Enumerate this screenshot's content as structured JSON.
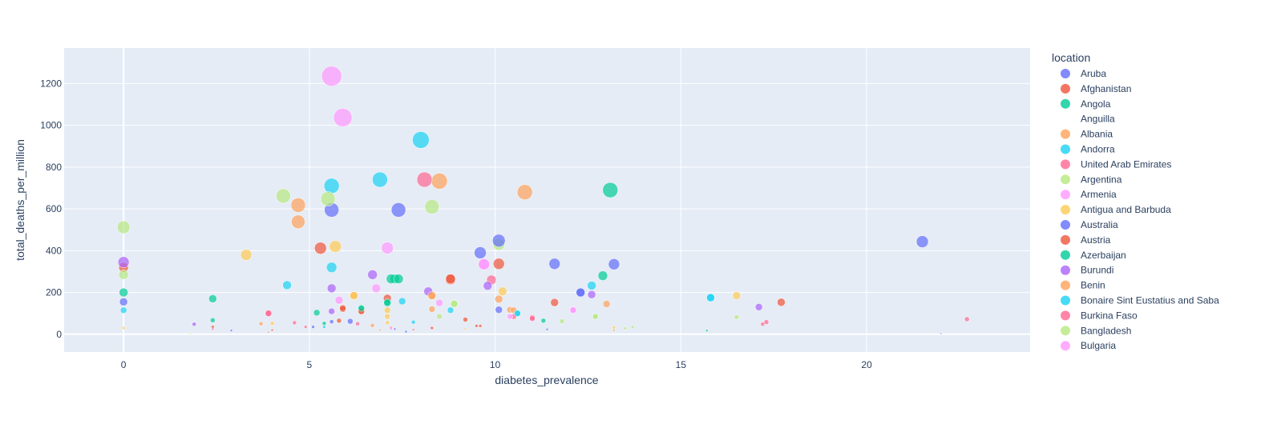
{
  "chart_data": {
    "type": "scatter",
    "xlabel": "diabetes_prevalence",
    "ylabel": "total_deaths_per_million",
    "xlim": [
      -1.6,
      24.4
    ],
    "ylim": [
      -85,
      1370
    ],
    "x_ticks": [
      0,
      5,
      10,
      15,
      20
    ],
    "y_ticks": [
      0,
      200,
      400,
      600,
      800,
      1000,
      1200
    ],
    "grid": true,
    "legend_title": "location",
    "legend_position": "right",
    "series": [
      {
        "name": "Aruba",
        "color": "#636efa",
        "points": [
          {
            "x": 0,
            "y": 155,
            "s": 10
          },
          {
            "x": 5.6,
            "y": 595,
            "s": 18
          },
          {
            "x": 9.6,
            "y": 390,
            "s": 15
          },
          {
            "x": 11.6,
            "y": 337,
            "s": 14
          },
          {
            "x": 13.2,
            "y": 335,
            "s": 14
          },
          {
            "x": 21.5,
            "y": 443,
            "s": 15
          },
          {
            "x": 12.3,
            "y": 200,
            "s": 11
          },
          {
            "x": 10.1,
            "y": 117,
            "s": 9
          },
          {
            "x": 6.1,
            "y": 62,
            "s": 7
          },
          {
            "x": 2.9,
            "y": 18,
            "s": 3
          },
          {
            "x": 5.1,
            "y": 35,
            "s": 4
          },
          {
            "x": 7.3,
            "y": 25,
            "s": 3
          },
          {
            "x": 22,
            "y": 3,
            "s": 2
          },
          {
            "x": 11.4,
            "y": 23,
            "s": 3
          }
        ]
      },
      {
        "name": "Afghanistan",
        "color": "#ef553b",
        "points": [
          {
            "x": 0,
            "y": 320,
            "s": 12
          },
          {
            "x": 5.3,
            "y": 412,
            "s": 15
          },
          {
            "x": 8.8,
            "y": 262,
            "s": 13
          },
          {
            "x": 10.1,
            "y": 337,
            "s": 14
          },
          {
            "x": 11.6,
            "y": 152,
            "s": 10
          },
          {
            "x": 17.7,
            "y": 153,
            "s": 10
          },
          {
            "x": 7.1,
            "y": 172,
            "s": 10
          },
          {
            "x": 5.9,
            "y": 120,
            "s": 8
          },
          {
            "x": 6.4,
            "y": 110,
            "s": 8
          },
          {
            "x": 8.3,
            "y": 30,
            "s": 4
          },
          {
            "x": 4,
            "y": 20,
            "s": 3
          },
          {
            "x": 2.4,
            "y": 35,
            "s": 4
          },
          {
            "x": 9.5,
            "y": 40,
            "s": 4
          },
          {
            "x": 5.8,
            "y": 65,
            "s": 6
          },
          {
            "x": 9.2,
            "y": 70,
            "s": 6
          }
        ]
      },
      {
        "name": "Angola",
        "color": "#00cc96",
        "points": [
          {
            "x": 0,
            "y": 200,
            "s": 11
          },
          {
            "x": 7.3,
            "y": 265,
            "s": 12
          },
          {
            "x": 7.2,
            "y": 265,
            "s": 12
          },
          {
            "x": 13.1,
            "y": 690,
            "s": 19
          },
          {
            "x": 12.9,
            "y": 280,
            "s": 12
          },
          {
            "x": 2.4,
            "y": 170,
            "s": 10
          },
          {
            "x": 7.1,
            "y": 148,
            "s": 9
          },
          {
            "x": 6.4,
            "y": 120,
            "s": 8
          },
          {
            "x": 5.2,
            "y": 103,
            "s": 8
          },
          {
            "x": 2.4,
            "y": 67,
            "s": 6
          },
          {
            "x": 5.4,
            "y": 52,
            "s": 5
          },
          {
            "x": 11.3,
            "y": 65,
            "s": 6
          },
          {
            "x": 15.7,
            "y": 18,
            "s": 3
          }
        ]
      },
      {
        "name": "Anguilla",
        "color": "#ab63fa",
        "points": []
      },
      {
        "name": "Albania",
        "color": "#ffa15a",
        "points": [
          {
            "x": 4.7,
            "y": 618,
            "s": 18
          },
          {
            "x": 4.7,
            "y": 538,
            "s": 17
          },
          {
            "x": 8.5,
            "y": 733,
            "s": 20
          },
          {
            "x": 10.8,
            "y": 680,
            "s": 19
          },
          {
            "x": 6.2,
            "y": 185,
            "s": 10
          },
          {
            "x": 8.3,
            "y": 183,
            "s": 10
          },
          {
            "x": 10.1,
            "y": 168,
            "s": 10
          },
          {
            "x": 13,
            "y": 145,
            "s": 9
          },
          {
            "x": 8.3,
            "y": 120,
            "s": 8
          },
          {
            "x": 10.4,
            "y": 117,
            "s": 8
          },
          {
            "x": 3.7,
            "y": 50,
            "s": 5
          },
          {
            "x": 6.7,
            "y": 42,
            "s": 5
          },
          {
            "x": 6.9,
            "y": 20,
            "s": 3
          },
          {
            "x": 13.2,
            "y": 20,
            "s": 3
          }
        ]
      },
      {
        "name": "Andorra",
        "color": "#19d3f3",
        "points": [
          {
            "x": 5.6,
            "y": 710,
            "s": 19
          },
          {
            "x": 6.9,
            "y": 740,
            "s": 19
          },
          {
            "x": 8,
            "y": 930,
            "s": 21
          },
          {
            "x": 5.6,
            "y": 320,
            "s": 13
          },
          {
            "x": 4.4,
            "y": 235,
            "s": 11
          },
          {
            "x": 12.6,
            "y": 233,
            "s": 11
          },
          {
            "x": 15.8,
            "y": 175,
            "s": 10
          },
          {
            "x": 7.5,
            "y": 158,
            "s": 9
          },
          {
            "x": 8.8,
            "y": 115,
            "s": 8
          },
          {
            "x": 10.6,
            "y": 100,
            "s": 8
          },
          {
            "x": 0,
            "y": 115,
            "s": 8
          },
          {
            "x": 7.8,
            "y": 58,
            "s": 5
          },
          {
            "x": 5.4,
            "y": 35,
            "s": 4
          },
          {
            "x": 7.6,
            "y": 15,
            "s": 3
          }
        ]
      },
      {
        "name": "United Arab Emirates",
        "color": "#ff6692",
        "points": [
          {
            "x": 8.1,
            "y": 740,
            "s": 19
          },
          {
            "x": 3.9,
            "y": 100,
            "s": 8
          },
          {
            "x": 9.9,
            "y": 260,
            "s": 12
          },
          {
            "x": 10.5,
            "y": 85,
            "s": 7
          },
          {
            "x": 11,
            "y": 80,
            "s": 7
          },
          {
            "x": 17.3,
            "y": 58,
            "s": 6
          },
          {
            "x": 22.7,
            "y": 72,
            "s": 6
          },
          {
            "x": 2.4,
            "y": 25,
            "s": 3
          },
          {
            "x": 4.6,
            "y": 55,
            "s": 5
          },
          {
            "x": 6.3,
            "y": 50,
            "s": 5
          },
          {
            "x": 17.2,
            "y": 48,
            "s": 5
          },
          {
            "x": 4.9,
            "y": 35,
            "s": 4
          },
          {
            "x": 7.2,
            "y": 30,
            "s": 4
          },
          {
            "x": 7.8,
            "y": 22,
            "s": 3
          }
        ]
      },
      {
        "name": "Argentina",
        "color": "#b6e880",
        "points": [
          {
            "x": 0,
            "y": 512,
            "s": 16
          },
          {
            "x": 0,
            "y": 285,
            "s": 12
          },
          {
            "x": 4.3,
            "y": 662,
            "s": 18
          },
          {
            "x": 5.5,
            "y": 648,
            "s": 18
          },
          {
            "x": 8.3,
            "y": 610,
            "s": 18
          },
          {
            "x": 10.1,
            "y": 430,
            "s": 15
          },
          {
            "x": 8.9,
            "y": 148,
            "s": 9
          },
          {
            "x": 8.5,
            "y": 85,
            "s": 7
          },
          {
            "x": 12.7,
            "y": 85,
            "s": 7
          },
          {
            "x": 16.5,
            "y": 82,
            "s": 6
          },
          {
            "x": 11.8,
            "y": 62,
            "s": 6
          },
          {
            "x": 13.5,
            "y": 28,
            "s": 4
          },
          {
            "x": 13.7,
            "y": 35,
            "s": 4
          },
          {
            "x": 1.8,
            "y": 3,
            "s": 2
          }
        ]
      },
      {
        "name": "Armenia",
        "color": "#ff97ff",
        "points": [
          {
            "x": 5.6,
            "y": 1235,
            "s": 25
          },
          {
            "x": 5.9,
            "y": 1037,
            "s": 23
          },
          {
            "x": 7.1,
            "y": 413,
            "s": 15
          },
          {
            "x": 9.7,
            "y": 335,
            "s": 14
          },
          {
            "x": 6.8,
            "y": 220,
            "s": 11
          },
          {
            "x": 5.8,
            "y": 163,
            "s": 10
          },
          {
            "x": 8.5,
            "y": 150,
            "s": 9
          },
          {
            "x": 12.1,
            "y": 118,
            "s": 8
          },
          {
            "x": 10.4,
            "y": 85,
            "s": 7
          },
          {
            "x": 7.2,
            "y": 25,
            "s": 3
          }
        ]
      },
      {
        "name": "Antigua and Barbuda",
        "color": "#fecb52",
        "points": [
          {
            "x": 3.3,
            "y": 380,
            "s": 14
          },
          {
            "x": 5.7,
            "y": 420,
            "s": 15
          },
          {
            "x": 10.2,
            "y": 205,
            "s": 11
          },
          {
            "x": 16.5,
            "y": 185,
            "s": 10
          },
          {
            "x": 6.2,
            "y": 185,
            "s": 10
          },
          {
            "x": 7.1,
            "y": 115,
            "s": 8
          },
          {
            "x": 7.1,
            "y": 85,
            "s": 7
          },
          {
            "x": 7.1,
            "y": 55,
            "s": 5
          },
          {
            "x": 0,
            "y": 30,
            "s": 4
          },
          {
            "x": 4,
            "y": 52,
            "s": 5
          },
          {
            "x": 9.2,
            "y": 25,
            "s": 3
          },
          {
            "x": 13.2,
            "y": 33,
            "s": 4
          }
        ]
      },
      {
        "name": "Australia",
        "color": "#636efa",
        "points": [
          {
            "x": 7.4,
            "y": 595,
            "s": 18
          },
          {
            "x": 10.1,
            "y": 448,
            "s": 16
          },
          {
            "x": 12.3,
            "y": 200,
            "s": 11
          },
          {
            "x": 5.6,
            "y": 60,
            "s": 5
          },
          {
            "x": 7.6,
            "y": 12,
            "s": 3
          }
        ]
      },
      {
        "name": "Austria",
        "color": "#ef553b",
        "points": [
          {
            "x": 8.8,
            "y": 265,
            "s": 12
          },
          {
            "x": 6.4,
            "y": 110,
            "s": 8
          },
          {
            "x": 5.9,
            "y": 125,
            "s": 8
          },
          {
            "x": 9.6,
            "y": 40,
            "s": 4
          },
          {
            "x": 3.9,
            "y": 10,
            "s": 2
          }
        ]
      },
      {
        "name": "Azerbaijan",
        "color": "#00cc96",
        "points": [
          {
            "x": 7.4,
            "y": 265,
            "s": 12
          },
          {
            "x": 6.4,
            "y": 125,
            "s": 8
          },
          {
            "x": 7.1,
            "y": 152,
            "s": 9
          }
        ]
      },
      {
        "name": "Burundi",
        "color": "#ab63fa",
        "points": [
          {
            "x": 0,
            "y": 345,
            "s": 14
          },
          {
            "x": 6.7,
            "y": 285,
            "s": 12
          },
          {
            "x": 9.8,
            "y": 232,
            "s": 11
          },
          {
            "x": 5.6,
            "y": 220,
            "s": 11
          },
          {
            "x": 8.2,
            "y": 205,
            "s": 11
          },
          {
            "x": 12.6,
            "y": 190,
            "s": 10
          },
          {
            "x": 17.1,
            "y": 130,
            "s": 9
          },
          {
            "x": 5.6,
            "y": 110,
            "s": 8
          },
          {
            "x": 1.9,
            "y": 48,
            "s": 5
          }
        ]
      },
      {
        "name": "Benin",
        "color": "#ffa15a",
        "points": [
          {
            "x": 8.3,
            "y": 185,
            "s": 10
          },
          {
            "x": 10.5,
            "y": 115,
            "s": 8
          }
        ]
      },
      {
        "name": "Bonaire Sint Eustatius and Saba",
        "color": "#19d3f3",
        "points": [
          {
            "x": 15.8,
            "y": 175,
            "s": 10
          },
          {
            "x": 10.6,
            "y": 100,
            "s": 8
          }
        ]
      },
      {
        "name": "Burkina Faso",
        "color": "#ff6692",
        "points": [
          {
            "x": 3.9,
            "y": 100,
            "s": 8
          },
          {
            "x": 11,
            "y": 75,
            "s": 7
          }
        ]
      },
      {
        "name": "Bangladesh",
        "color": "#b6e880",
        "points": [
          {
            "x": 8.9,
            "y": 145,
            "s": 9
          },
          {
            "x": 12.7,
            "y": 85,
            "s": 7
          }
        ]
      },
      {
        "name": "Bulgaria",
        "color": "#ff97ff",
        "points": [
          {
            "x": 9.7,
            "y": 335,
            "s": 14
          },
          {
            "x": 12.1,
            "y": 115,
            "s": 8
          }
        ]
      }
    ]
  }
}
